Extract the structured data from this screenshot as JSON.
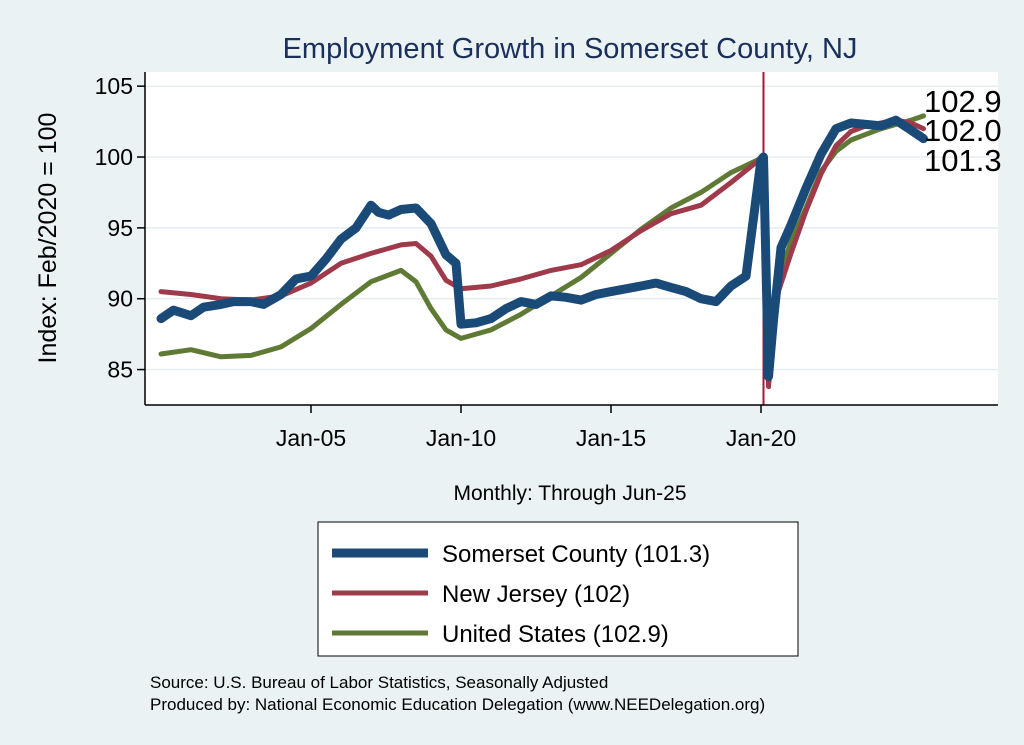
{
  "chart_data": {
    "type": "line",
    "title": "Employment Growth in Somerset  County, NJ",
    "xlabel": "Monthly: Through Jun-25",
    "ylabel": "Index: Feb/2020 = 100",
    "x_range": [
      "Jan-00",
      "Jun-25"
    ],
    "ylim": [
      82.5,
      106
    ],
    "y_ticks": [
      85,
      90,
      95,
      100,
      105
    ],
    "x_ticks": [
      "Jan-05",
      "Jan-10",
      "Jan-15",
      "Jan-20"
    ],
    "reference_line": {
      "x": "Feb-20",
      "color": "#a01836"
    },
    "grid": true,
    "end_labels": [
      "102.9",
      "102.0",
      "101.3"
    ],
    "series": [
      {
        "name": "Somerset  County (101.3)",
        "color": "#1a4a78",
        "points": [
          [
            "Jan-00",
            88.6
          ],
          [
            "Jun-00",
            89.2
          ],
          [
            "Jan-01",
            88.8
          ],
          [
            "Jun-01",
            89.4
          ],
          [
            "Jan-02",
            89.6
          ],
          [
            "Jun-02",
            89.8
          ],
          [
            "Jan-03",
            89.8
          ],
          [
            "Jun-03",
            89.6
          ],
          [
            "Jan-04",
            90.3
          ],
          [
            "Jul-04",
            91.4
          ],
          [
            "Jan-05",
            91.6
          ],
          [
            "Jul-05",
            92.8
          ],
          [
            "Jan-06",
            94.2
          ],
          [
            "Jul-06",
            95.0
          ],
          [
            "Jan-07",
            96.6
          ],
          [
            "Apr-07",
            96.1
          ],
          [
            "Aug-07",
            95.9
          ],
          [
            "Jan-08",
            96.3
          ],
          [
            "Jul-08",
            96.4
          ],
          [
            "Jan-09",
            95.3
          ],
          [
            "Jul-09",
            93.1
          ],
          [
            "Nov-09",
            92.5
          ],
          [
            "Jan-10",
            88.2
          ],
          [
            "Jul-10",
            88.3
          ],
          [
            "Jan-11",
            88.6
          ],
          [
            "Jul-11",
            89.3
          ],
          [
            "Jan-12",
            89.8
          ],
          [
            "Jul-12",
            89.6
          ],
          [
            "Jan-13",
            90.2
          ],
          [
            "Jul-13",
            90.1
          ],
          [
            "Jan-14",
            89.9
          ],
          [
            "Jul-14",
            90.3
          ],
          [
            "Jan-15",
            90.5
          ],
          [
            "Jul-15",
            90.7
          ],
          [
            "Jan-16",
            90.9
          ],
          [
            "Jul-16",
            91.1
          ],
          [
            "Jan-17",
            90.8
          ],
          [
            "Jul-17",
            90.5
          ],
          [
            "Jan-18",
            90.0
          ],
          [
            "Jul-18",
            89.8
          ],
          [
            "Jan-19",
            90.9
          ],
          [
            "Jul-19",
            91.6
          ],
          [
            "Jan-20",
            99.8
          ],
          [
            "Feb-20",
            100.0
          ],
          [
            "Apr-20",
            84.5
          ],
          [
            "Jun-20",
            88.5
          ],
          [
            "Sep-20",
            93.6
          ],
          [
            "Jan-21",
            95.2
          ],
          [
            "Jul-21",
            97.8
          ],
          [
            "Jan-22",
            100.2
          ],
          [
            "Jul-22",
            102.0
          ],
          [
            "Jan-23",
            102.4
          ],
          [
            "Jul-23",
            102.3
          ],
          [
            "Jan-24",
            102.2
          ],
          [
            "Jul-24",
            102.6
          ],
          [
            "Jan-25",
            101.9
          ],
          [
            "Jun-25",
            101.3
          ]
        ]
      },
      {
        "name": "New Jersey (102)",
        "color": "#9e3a4a",
        "points": [
          [
            "Jan-00",
            90.5
          ],
          [
            "Jan-01",
            90.3
          ],
          [
            "Jan-02",
            90.0
          ],
          [
            "Jan-03",
            89.9
          ],
          [
            "Jan-04",
            90.2
          ],
          [
            "Jan-05",
            91.1
          ],
          [
            "Jan-06",
            92.5
          ],
          [
            "Jan-07",
            93.2
          ],
          [
            "Jan-08",
            93.8
          ],
          [
            "Jul-08",
            93.9
          ],
          [
            "Jan-09",
            93.0
          ],
          [
            "Jul-09",
            91.3
          ],
          [
            "Jan-10",
            90.7
          ],
          [
            "Jan-11",
            90.9
          ],
          [
            "Jan-12",
            91.4
          ],
          [
            "Jan-13",
            92.0
          ],
          [
            "Jan-14",
            92.4
          ],
          [
            "Jan-15",
            93.4
          ],
          [
            "Jan-16",
            94.8
          ],
          [
            "Jan-17",
            96.0
          ],
          [
            "Jan-18",
            96.6
          ],
          [
            "Jan-19",
            98.2
          ],
          [
            "Jan-20",
            99.9
          ],
          [
            "Feb-20",
            100.0
          ],
          [
            "Apr-20",
            83.8
          ],
          [
            "Jul-20",
            90.0
          ],
          [
            "Jan-21",
            93.2
          ],
          [
            "Jul-21",
            96.2
          ],
          [
            "Jan-22",
            98.8
          ],
          [
            "Jul-22",
            100.8
          ],
          [
            "Jan-23",
            101.8
          ],
          [
            "Jul-23",
            102.2
          ],
          [
            "Jan-24",
            102.4
          ],
          [
            "Jul-24",
            102.6
          ],
          [
            "Jan-25",
            102.4
          ],
          [
            "Jun-25",
            102.0
          ]
        ]
      },
      {
        "name": "United States (102.9)",
        "color": "#5e7a34",
        "points": [
          [
            "Jan-00",
            86.1
          ],
          [
            "Jan-01",
            86.4
          ],
          [
            "Jan-02",
            85.9
          ],
          [
            "Jan-03",
            86.0
          ],
          [
            "Jan-04",
            86.6
          ],
          [
            "Jan-05",
            87.9
          ],
          [
            "Jan-06",
            89.6
          ],
          [
            "Jan-07",
            91.2
          ],
          [
            "Jan-08",
            92.0
          ],
          [
            "Jul-08",
            91.2
          ],
          [
            "Jan-09",
            89.3
          ],
          [
            "Jul-09",
            87.8
          ],
          [
            "Jan-10",
            87.2
          ],
          [
            "Jan-11",
            87.8
          ],
          [
            "Jan-12",
            88.9
          ],
          [
            "Jan-13",
            90.2
          ],
          [
            "Jan-14",
            91.5
          ],
          [
            "Jan-15",
            93.2
          ],
          [
            "Jan-16",
            94.9
          ],
          [
            "Jan-17",
            96.4
          ],
          [
            "Jan-18",
            97.5
          ],
          [
            "Jan-19",
            98.9
          ],
          [
            "Jan-20",
            99.9
          ],
          [
            "Feb-20",
            100.0
          ],
          [
            "Apr-20",
            85.2
          ],
          [
            "Jul-20",
            91.0
          ],
          [
            "Jan-21",
            94.0
          ],
          [
            "Jul-21",
            96.4
          ],
          [
            "Jan-22",
            99.0
          ],
          [
            "Jul-22",
            100.4
          ],
          [
            "Jan-23",
            101.2
          ],
          [
            "Jul-23",
            101.6
          ],
          [
            "Jan-24",
            102.0
          ],
          [
            "Jul-24",
            102.3
          ],
          [
            "Jan-25",
            102.6
          ],
          [
            "Jun-25",
            102.9
          ]
        ]
      }
    ]
  },
  "source_lines": [
    "Source: U.S. Bureau of Labor Statistics, Seasonally Adjusted",
    "Produced by: National Economic Education Delegation (www.NEEDelegation.org)"
  ]
}
